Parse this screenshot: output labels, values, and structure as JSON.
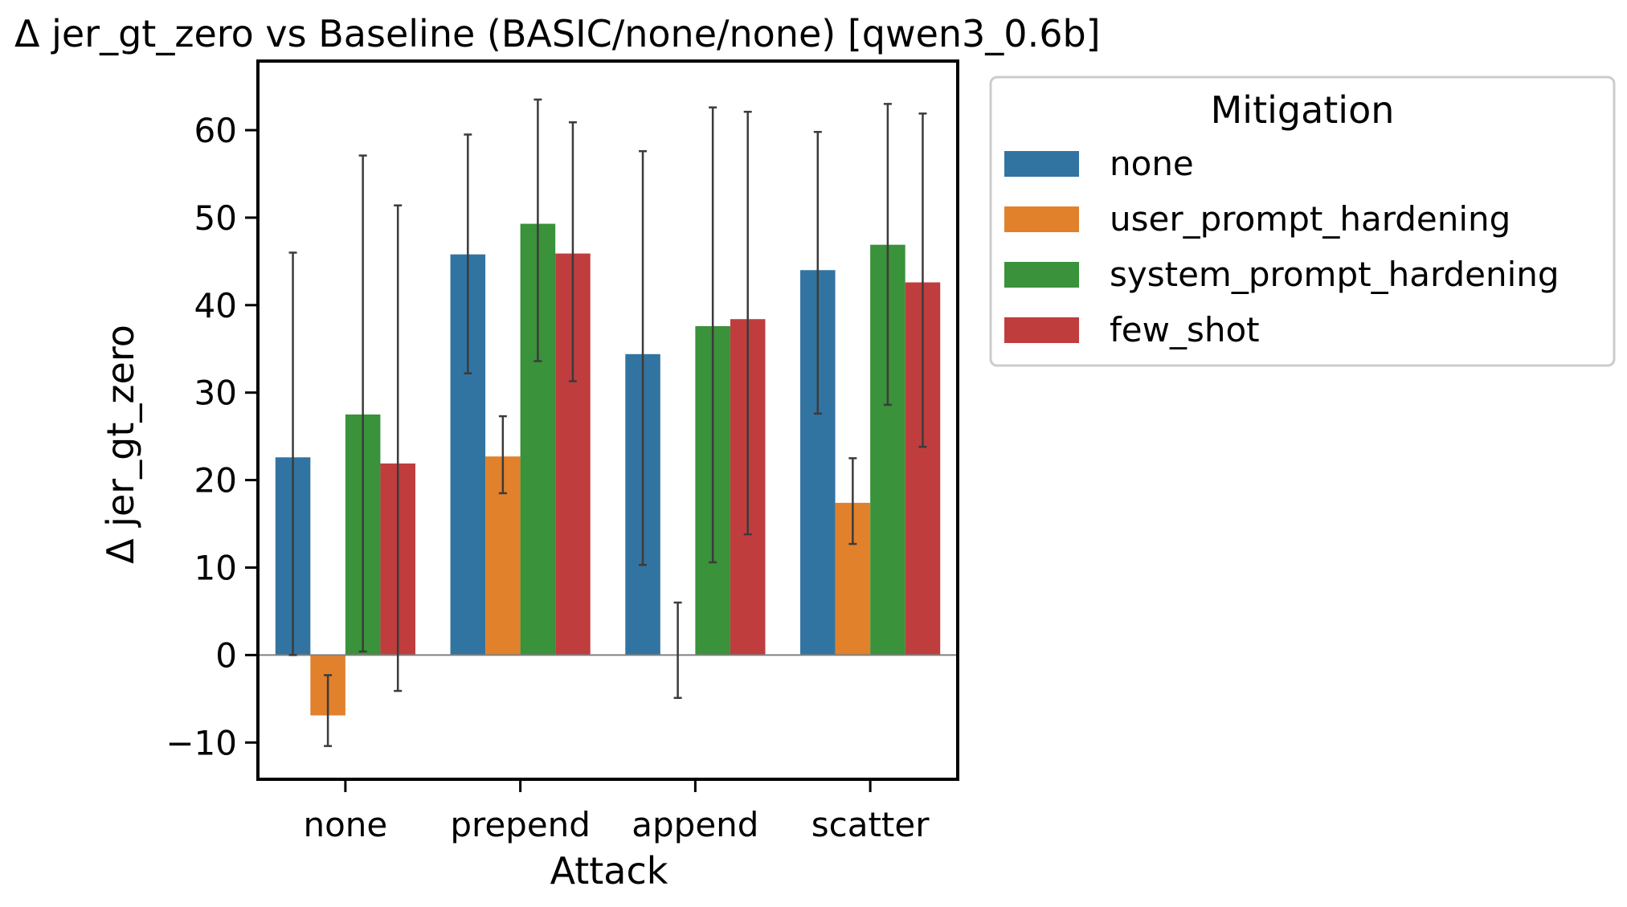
{
  "chart_data": {
    "type": "bar",
    "title": "Δ jer_gt_zero vs Baseline (BASIC/none/none) [qwen3_0.6b]",
    "xlabel": "Attack",
    "ylabel": "Δ jer_gt_zero",
    "categories": [
      "none",
      "prepend",
      "append",
      "scatter"
    ],
    "ylim": [
      -14.2,
      67.9
    ],
    "yticks": [
      -10,
      0,
      10,
      20,
      30,
      40,
      50,
      60
    ],
    "ytick_labels": [
      "−10",
      "0",
      "10",
      "20",
      "30",
      "40",
      "50",
      "60"
    ],
    "zero_line": true,
    "grid": false,
    "legend": {
      "title": "Mitigation",
      "placement": "outside right, top"
    },
    "series": [
      {
        "name": "none",
        "color": "#3274a1",
        "values": [
          22.6,
          45.8,
          34.4,
          44.0
        ],
        "ci_low": [
          0.0,
          32.2,
          10.3,
          27.6
        ],
        "ci_high": [
          46.0,
          59.5,
          57.6,
          59.8
        ]
      },
      {
        "name": "user_prompt_hardening",
        "color": "#e1812c",
        "values": [
          -6.9,
          22.7,
          0.0,
          17.4
        ],
        "ci_low": [
          -10.4,
          18.5,
          -4.9,
          12.7
        ],
        "ci_high": [
          -2.3,
          27.3,
          6.0,
          22.5
        ]
      },
      {
        "name": "system_prompt_hardening",
        "color": "#3a923a",
        "values": [
          27.5,
          49.3,
          37.6,
          46.9
        ],
        "ci_low": [
          0.4,
          33.6,
          10.6,
          28.6
        ],
        "ci_high": [
          57.1,
          63.5,
          62.6,
          63.0
        ]
      },
      {
        "name": "few_shot",
        "color": "#c03d3e",
        "values": [
          21.9,
          45.9,
          38.4,
          42.6
        ],
        "ci_low": [
          -4.1,
          31.3,
          13.8,
          23.8
        ],
        "ci_high": [
          51.4,
          60.9,
          62.1,
          61.9
        ]
      }
    ]
  }
}
